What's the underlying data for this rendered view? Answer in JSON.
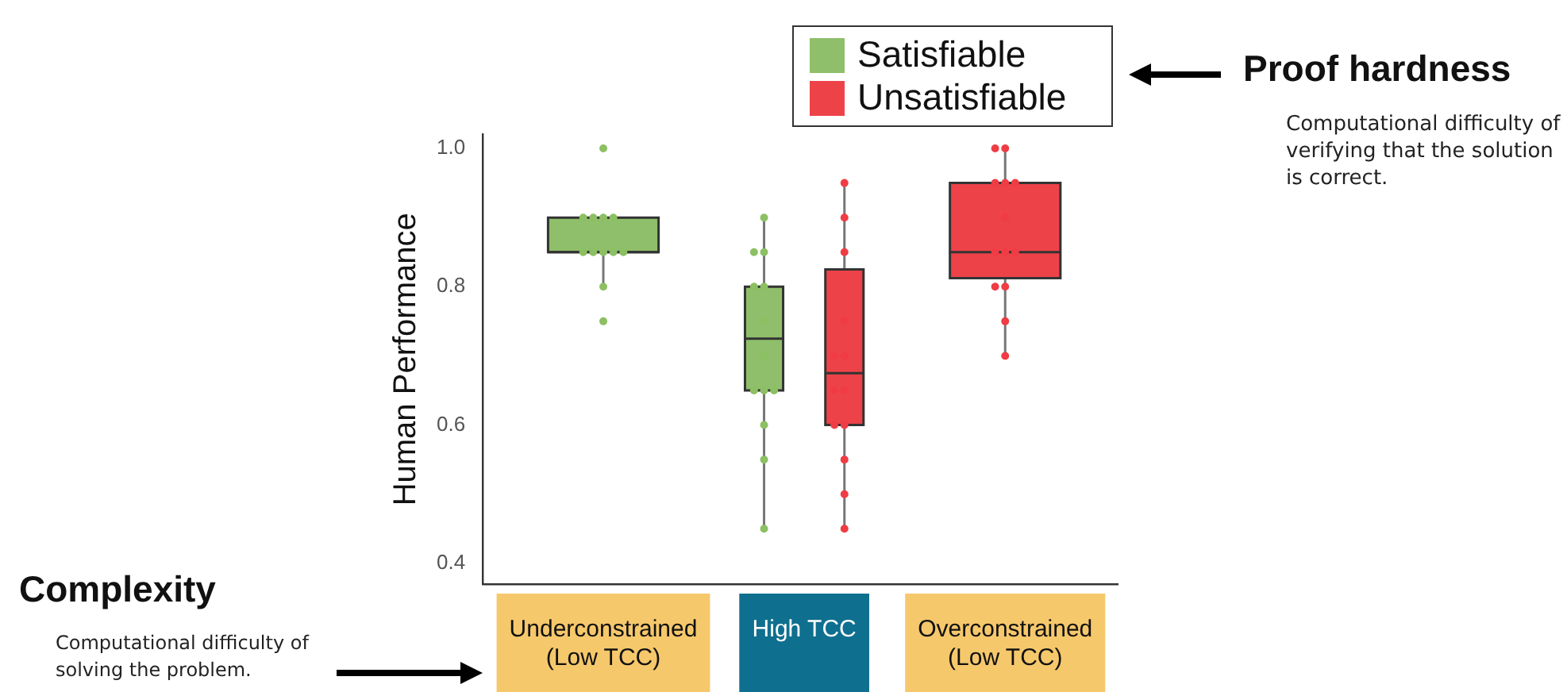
{
  "chart_data": {
    "type": "box",
    "categories": [
      "Underconstrained (Low TCC)",
      "High TCC",
      "Overconstrained (Low TCC)"
    ],
    "ylabel": "Human Performance",
    "ylim": [
      0.37,
      1.02
    ],
    "yticks": [
      0.4,
      0.6,
      0.8,
      {
        "value": 1,
        "label": "1.0"
      }
    ],
    "grid": false,
    "legend": "top right",
    "annotations": [
      "Proof hardness",
      "Computational difficulty of verifying that the solution is correct.",
      "Complexity",
      "Computational difficulty of solving the problem."
    ],
    "series": [
      {
        "name": "Satisfiable",
        "type": "box",
        "color": "#8fbf6a",
        "boxes": [
          {
            "low": 0.8,
            "q1": 0.85,
            "median": 0.85,
            "q3": 0.9,
            "high": 0.9
          },
          {
            "low": 0.45,
            "q1": 0.65,
            "median": 0.725,
            "q3": 0.8,
            "high": 0.9
          },
          null
        ]
      },
      {
        "name": "Unsatisfiable",
        "type": "box",
        "color": "#ee4249",
        "boxes": [
          null,
          {
            "low": 0.45,
            "q1": 0.6,
            "median": 0.675,
            "q3": 0.825,
            "high": 0.95
          },
          {
            "low": 0.7,
            "q1": 0.8125,
            "median": 0.85,
            "q3": 0.95,
            "high": 1.0
          }
        ]
      },
      {
        "type": "scatter",
        "color": "#8cc063",
        "x": [
          "Underconstrained (Low TCC)",
          "Underconstrained (Low TCC)",
          "Underconstrained (Low TCC)",
          "Underconstrained (Low TCC)",
          "Underconstrained (Low TCC)",
          "Underconstrained (Low TCC)",
          "Underconstrained (Low TCC)",
          "Underconstrained (Low TCC)",
          "Underconstrained (Low TCC)",
          "Underconstrained (Low TCC)",
          "Underconstrained (Low TCC)",
          "Underconstrained (Low TCC)",
          "High TCC",
          "High TCC",
          "High TCC",
          "High TCC",
          "High TCC",
          "High TCC",
          "High TCC",
          "High TCC",
          "High TCC",
          "High TCC",
          "High TCC",
          "High TCC",
          "High TCC"
        ],
        "values": [
          1.0,
          0.9,
          0.9,
          0.9,
          0.9,
          0.85,
          0.85,
          0.85,
          0.85,
          0.85,
          0.8,
          0.75,
          0.9,
          0.85,
          0.85,
          0.8,
          0.8,
          0.75,
          0.7,
          0.65,
          0.65,
          0.65,
          0.6,
          0.55,
          0.45
        ]
      },
      {
        "type": "scatter",
        "color": "#f03c44",
        "x": [
          "High TCC",
          "High TCC",
          "High TCC",
          "High TCC",
          "High TCC",
          "High TCC",
          "High TCC",
          "High TCC",
          "High TCC",
          "High TCC",
          "High TCC",
          "High TCC",
          "High TCC",
          "Overconstrained (Low TCC)",
          "Overconstrained (Low TCC)",
          "Overconstrained (Low TCC)",
          "Overconstrained (Low TCC)",
          "Overconstrained (Low TCC)",
          "Overconstrained (Low TCC)",
          "Overconstrained (Low TCC)",
          "Overconstrained (Low TCC)",
          "Overconstrained (Low TCC)",
          "Overconstrained (Low TCC)",
          "Overconstrained (Low TCC)",
          "Overconstrained (Low TCC)",
          "Overconstrained (Low TCC)"
        ],
        "values": [
          0.95,
          0.9,
          0.85,
          0.75,
          0.7,
          0.7,
          0.65,
          0.65,
          0.6,
          0.6,
          0.55,
          0.5,
          0.45,
          1.0,
          1.0,
          0.95,
          0.95,
          0.95,
          0.9,
          0.85,
          0.85,
          0.85,
          0.8,
          0.8,
          0.75,
          0.7
        ]
      }
    ]
  }
}
